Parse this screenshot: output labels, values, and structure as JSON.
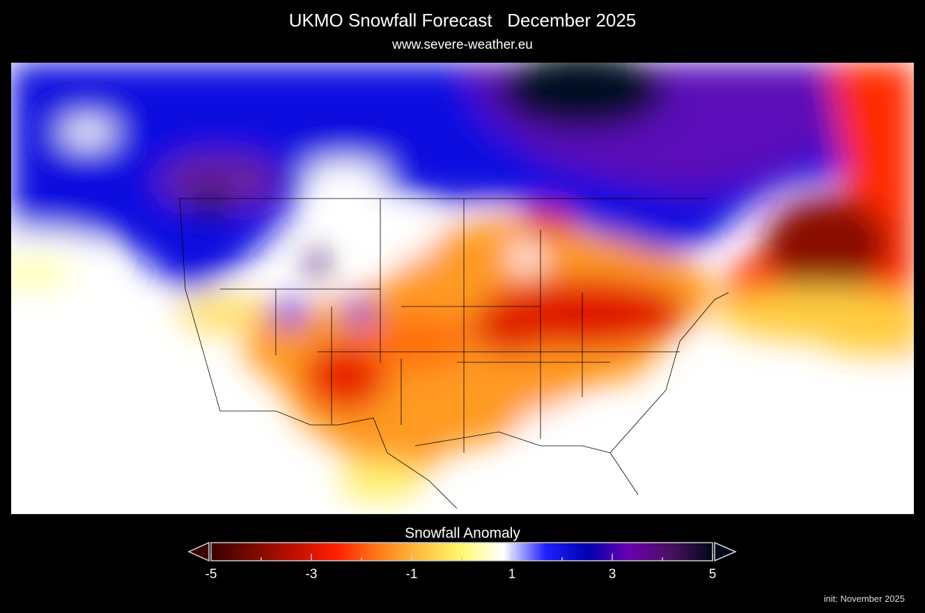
{
  "header": {
    "title": "UKMO Snowfall Forecast   December 2025",
    "subtitle": "www.severe-weather.eu"
  },
  "map": {
    "region": "North America / CONUS",
    "variable": "snowfall anomaly",
    "background": "#ffffff",
    "border_color": "#000000"
  },
  "colorbar": {
    "title": "Snowfall Anomaly",
    "min": -5,
    "max": 5,
    "tick_values": [
      -5,
      -4,
      -3,
      -2,
      -1,
      0,
      1,
      2,
      3,
      4,
      5
    ],
    "tick_labels": [
      "-5",
      "-3",
      "-1",
      "1",
      "3",
      "5"
    ],
    "extend": "both",
    "colors": [
      "#3a0000",
      "#7a0a00",
      "#c01000",
      "#ff2000",
      "#ff7a1a",
      "#ffc040",
      "#fff870",
      "#ffffff",
      "#2020ff",
      "#0000b0",
      "#6a00b0",
      "#4a1060",
      "#000818"
    ]
  },
  "footer": {
    "init": "init: November 2025"
  }
}
